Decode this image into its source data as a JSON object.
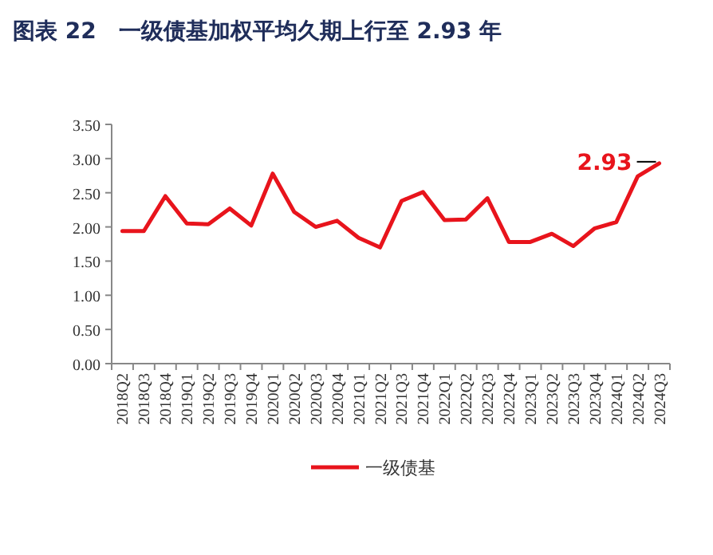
{
  "chart_data": {
    "type": "line",
    "title": "图表 22　一级债基加权平均久期上行至 2.93 年",
    "categories": [
      "2018Q2",
      "2018Q3",
      "2018Q4",
      "2019Q1",
      "2019Q2",
      "2019Q3",
      "2019Q4",
      "2020Q1",
      "2020Q2",
      "2020Q3",
      "2020Q4",
      "2021Q1",
      "2021Q2",
      "2021Q3",
      "2021Q4",
      "2022Q1",
      "2022Q2",
      "2022Q3",
      "2022Q4",
      "2023Q1",
      "2023Q2",
      "2023Q3",
      "2023Q4",
      "2024Q1",
      "2024Q2",
      "2024Q3"
    ],
    "series": [
      {
        "name": "一级债基",
        "color": "#e8141c",
        "values": [
          1.94,
          1.94,
          2.45,
          2.05,
          2.04,
          2.27,
          2.02,
          2.78,
          2.22,
          2.0,
          2.09,
          1.84,
          1.7,
          2.38,
          2.51,
          2.1,
          2.11,
          2.42,
          1.78,
          1.78,
          1.9,
          1.72,
          1.98,
          2.07,
          2.74,
          2.93
        ]
      }
    ],
    "ylim": [
      0,
      3.5
    ],
    "yticks": [
      {
        "value": 0,
        "label": "0.00"
      },
      {
        "value": 0.5,
        "label": "0.50"
      },
      {
        "value": 1,
        "label": "1.00"
      },
      {
        "value": 1.5,
        "label": "1.50"
      },
      {
        "value": 2,
        "label": "2.00"
      },
      {
        "value": 2.5,
        "label": "2.50"
      },
      {
        "value": 3,
        "label": "3.00"
      },
      {
        "value": 3.5,
        "label": "3.50"
      }
    ],
    "annotations": [
      {
        "text": "2.93",
        "x": "2024Q3",
        "y": 2.93
      }
    ],
    "grid": false,
    "legend": "bottom",
    "marker": "none",
    "line_style": "solid"
  }
}
